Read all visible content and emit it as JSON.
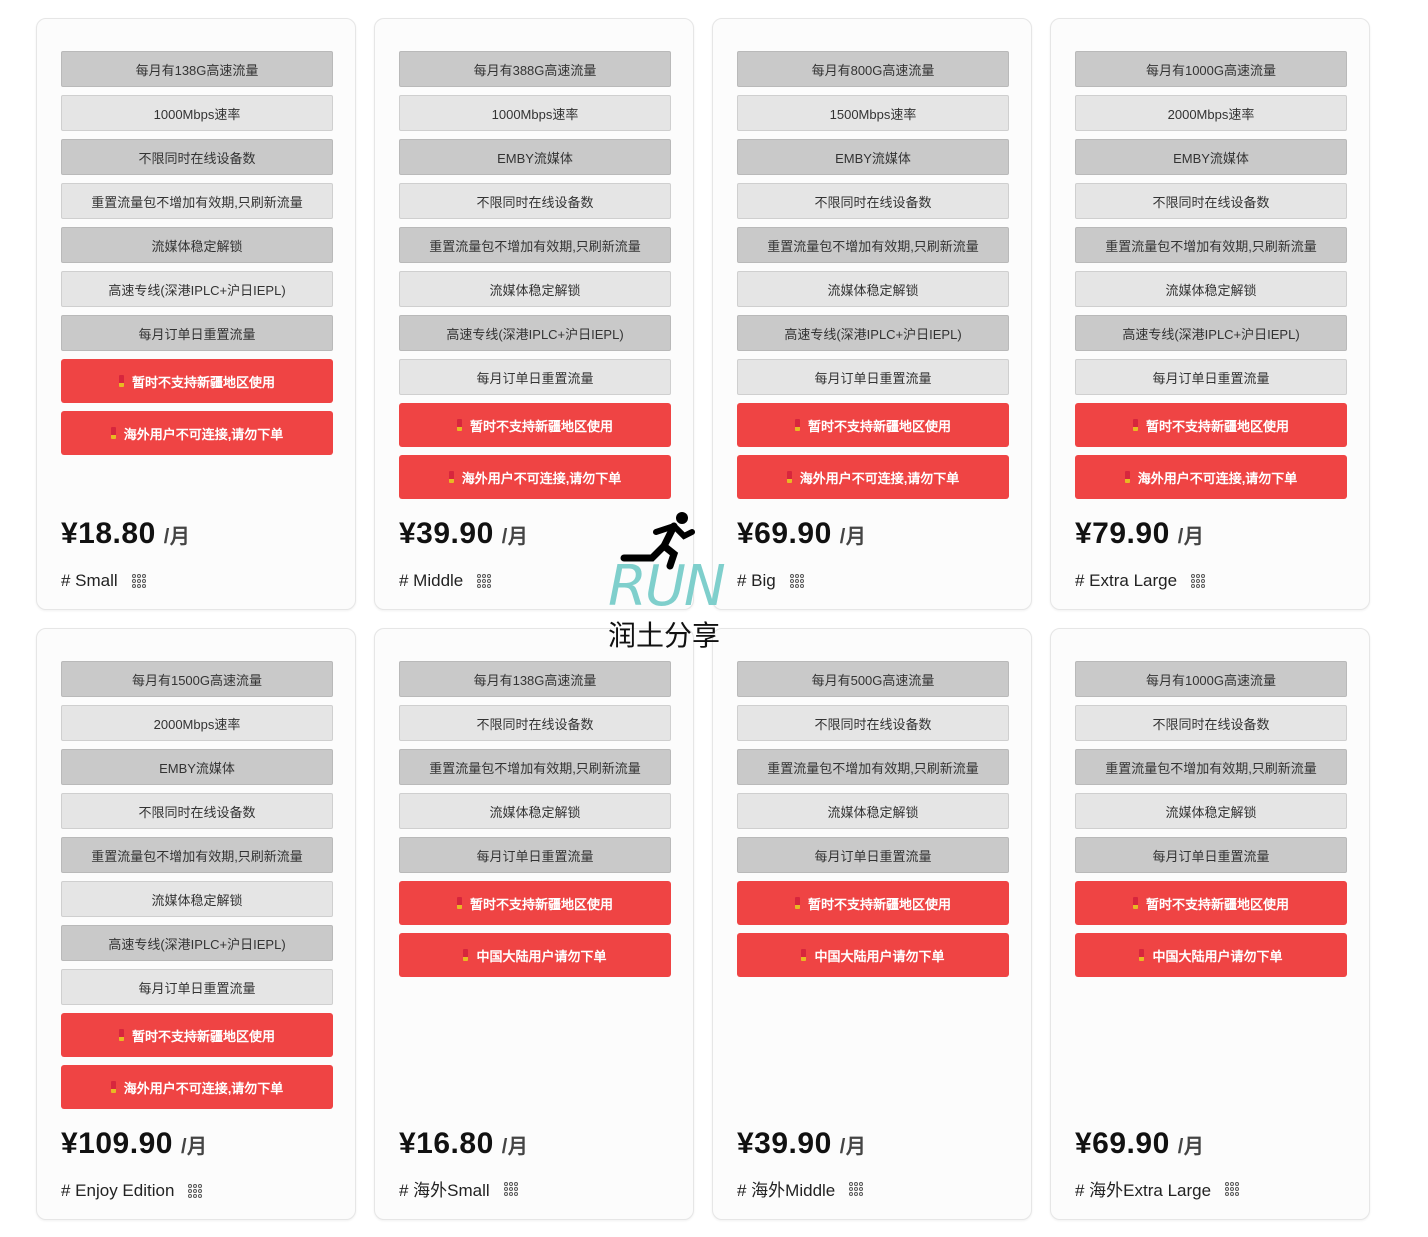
{
  "unit": "/月",
  "colors": {
    "warning_red": "#ef4444",
    "item_dark": "#c9c9c9",
    "item_light": "#e5e5e5",
    "watermark": "#7fcfcc"
  },
  "watermark": {
    "logo": "RUN",
    "text": "润土分享"
  },
  "cards": [
    {
      "price": "¥18.80",
      "name": "# Small",
      "items": [
        {
          "text": "每月有138G高速流量",
          "style": "dark"
        },
        {
          "text": "1000Mbps速率",
          "style": "light"
        },
        {
          "text": "不限同时在线设备数",
          "style": "dark"
        },
        {
          "text": "重置流量包不增加有效期,只刷新流量",
          "style": "light"
        },
        {
          "text": "流媒体稳定解锁",
          "style": "dark"
        },
        {
          "text": "高速专线(深港IPLC+沪日IEPL)",
          "style": "light"
        },
        {
          "text": "每月订单日重置流量",
          "style": "dark"
        },
        {
          "text": "暂时不支持新疆地区使用",
          "style": "red"
        },
        {
          "text": "海外用户不可连接,请勿下单",
          "style": "red"
        }
      ]
    },
    {
      "price": "¥39.90",
      "name": "# Middle",
      "items": [
        {
          "text": "每月有388G高速流量",
          "style": "dark"
        },
        {
          "text": "1000Mbps速率",
          "style": "light"
        },
        {
          "text": "EMBY流媒体",
          "style": "dark"
        },
        {
          "text": "不限同时在线设备数",
          "style": "light"
        },
        {
          "text": "重置流量包不增加有效期,只刷新流量",
          "style": "dark"
        },
        {
          "text": "流媒体稳定解锁",
          "style": "light"
        },
        {
          "text": "高速专线(深港IPLC+沪日IEPL)",
          "style": "dark"
        },
        {
          "text": "每月订单日重置流量",
          "style": "light"
        },
        {
          "text": "暂时不支持新疆地区使用",
          "style": "red"
        },
        {
          "text": "海外用户不可连接,请勿下单",
          "style": "red"
        }
      ]
    },
    {
      "price": "¥69.90",
      "name": "# Big",
      "items": [
        {
          "text": "每月有800G高速流量",
          "style": "dark"
        },
        {
          "text": "1500Mbps速率",
          "style": "light"
        },
        {
          "text": "EMBY流媒体",
          "style": "dark"
        },
        {
          "text": "不限同时在线设备数",
          "style": "light"
        },
        {
          "text": "重置流量包不增加有效期,只刷新流量",
          "style": "dark"
        },
        {
          "text": "流媒体稳定解锁",
          "style": "light"
        },
        {
          "text": "高速专线(深港IPLC+沪日IEPL)",
          "style": "dark"
        },
        {
          "text": "每月订单日重置流量",
          "style": "light"
        },
        {
          "text": "暂时不支持新疆地区使用",
          "style": "red"
        },
        {
          "text": "海外用户不可连接,请勿下单",
          "style": "red"
        }
      ]
    },
    {
      "price": "¥79.90",
      "name": "# Extra Large",
      "items": [
        {
          "text": "每月有1000G高速流量",
          "style": "dark"
        },
        {
          "text": "2000Mbps速率",
          "style": "light"
        },
        {
          "text": "EMBY流媒体",
          "style": "dark"
        },
        {
          "text": "不限同时在线设备数",
          "style": "light"
        },
        {
          "text": "重置流量包不增加有效期,只刷新流量",
          "style": "dark"
        },
        {
          "text": "流媒体稳定解锁",
          "style": "light"
        },
        {
          "text": "高速专线(深港IPLC+沪日IEPL)",
          "style": "dark"
        },
        {
          "text": "每月订单日重置流量",
          "style": "light"
        },
        {
          "text": "暂时不支持新疆地区使用",
          "style": "red"
        },
        {
          "text": "海外用户不可连接,请勿下单",
          "style": "red"
        }
      ]
    },
    {
      "price": "¥109.90",
      "name": "# Enjoy Edition",
      "items": [
        {
          "text": "每月有1500G高速流量",
          "style": "dark"
        },
        {
          "text": "2000Mbps速率",
          "style": "light"
        },
        {
          "text": "EMBY流媒体",
          "style": "dark"
        },
        {
          "text": "不限同时在线设备数",
          "style": "light"
        },
        {
          "text": "重置流量包不增加有效期,只刷新流量",
          "style": "dark"
        },
        {
          "text": "流媒体稳定解锁",
          "style": "light"
        },
        {
          "text": "高速专线(深港IPLC+沪日IEPL)",
          "style": "dark"
        },
        {
          "text": "每月订单日重置流量",
          "style": "light"
        },
        {
          "text": "暂时不支持新疆地区使用",
          "style": "red"
        },
        {
          "text": "海外用户不可连接,请勿下单",
          "style": "red"
        }
      ]
    },
    {
      "price": "¥16.80",
      "name": "# 海外Small",
      "items": [
        {
          "text": "每月有138G高速流量",
          "style": "dark"
        },
        {
          "text": "不限同时在线设备数",
          "style": "light"
        },
        {
          "text": "重置流量包不增加有效期,只刷新流量",
          "style": "dark"
        },
        {
          "text": "流媒体稳定解锁",
          "style": "light"
        },
        {
          "text": "每月订单日重置流量",
          "style": "dark"
        },
        {
          "text": "暂时不支持新疆地区使用",
          "style": "red"
        },
        {
          "text": "中国大陆用户请勿下单",
          "style": "red"
        }
      ]
    },
    {
      "price": "¥39.90",
      "name": "# 海外Middle",
      "items": [
        {
          "text": "每月有500G高速流量",
          "style": "dark"
        },
        {
          "text": "不限同时在线设备数",
          "style": "light"
        },
        {
          "text": "重置流量包不增加有效期,只刷新流量",
          "style": "dark"
        },
        {
          "text": "流媒体稳定解锁",
          "style": "light"
        },
        {
          "text": "每月订单日重置流量",
          "style": "dark"
        },
        {
          "text": "暂时不支持新疆地区使用",
          "style": "red"
        },
        {
          "text": "中国大陆用户请勿下单",
          "style": "red"
        }
      ]
    },
    {
      "price": "¥69.90",
      "name": "# 海外Extra Large",
      "items": [
        {
          "text": "每月有1000G高速流量",
          "style": "dark"
        },
        {
          "text": "不限同时在线设备数",
          "style": "light"
        },
        {
          "text": "重置流量包不增加有效期,只刷新流量",
          "style": "dark"
        },
        {
          "text": "流媒体稳定解锁",
          "style": "light"
        },
        {
          "text": "每月订单日重置流量",
          "style": "dark"
        },
        {
          "text": "暂时不支持新疆地区使用",
          "style": "red"
        },
        {
          "text": "中国大陆用户请勿下单",
          "style": "red"
        }
      ]
    }
  ]
}
